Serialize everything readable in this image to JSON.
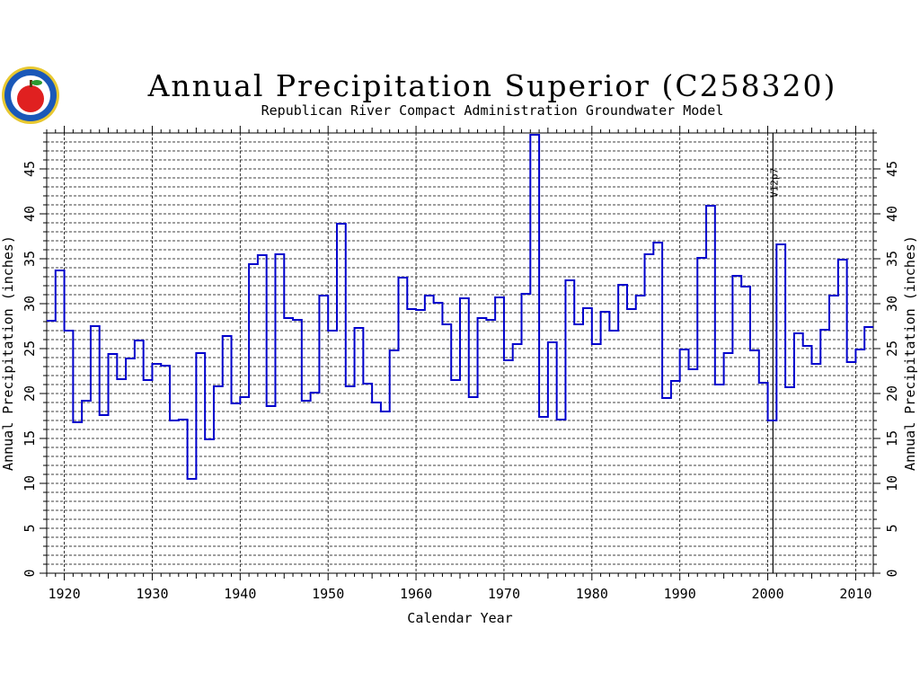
{
  "chart_data": {
    "type": "line",
    "step": true,
    "title": "Annual Precipitation Superior (C258320)",
    "subtitle": "Republican River Compact Administration Groundwater Model",
    "xlabel": "Calendar Year",
    "ylabel": "Annual Precipitation (inches)",
    "ylabel_right": "Annual Precipitation (inches)",
    "xlim": [
      1918,
      2012
    ],
    "ylim": [
      0,
      49
    ],
    "x_ticks": [
      1920,
      1930,
      1940,
      1950,
      1960,
      1970,
      1980,
      1990,
      2000,
      2010
    ],
    "y_ticks": [
      0,
      5,
      10,
      15,
      20,
      25,
      30,
      35,
      40,
      45
    ],
    "grid": true,
    "line_color": "#0000cc",
    "grid_color": "#000000",
    "annotation": {
      "x": 2001,
      "label": "V12p7"
    },
    "x": [
      1918,
      1919,
      1920,
      1921,
      1922,
      1923,
      1924,
      1925,
      1926,
      1927,
      1928,
      1929,
      1930,
      1931,
      1932,
      1933,
      1934,
      1935,
      1936,
      1937,
      1938,
      1939,
      1940,
      1941,
      1942,
      1943,
      1944,
      1945,
      1946,
      1947,
      1948,
      1949,
      1950,
      1951,
      1952,
      1953,
      1954,
      1955,
      1956,
      1957,
      1958,
      1959,
      1960,
      1961,
      1962,
      1963,
      1964,
      1965,
      1966,
      1967,
      1968,
      1969,
      1970,
      1971,
      1972,
      1973,
      1974,
      1975,
      1976,
      1977,
      1978,
      1979,
      1980,
      1981,
      1982,
      1983,
      1984,
      1985,
      1986,
      1987,
      1988,
      1989,
      1990,
      1991,
      1992,
      1993,
      1994,
      1995,
      1996,
      1997,
      1998,
      1999,
      2000,
      2001,
      2002,
      2003,
      2004,
      2005,
      2006,
      2007,
      2008,
      2009,
      2010,
      2011
    ],
    "values": [
      28.1,
      33.7,
      27.0,
      16.8,
      19.2,
      27.5,
      17.6,
      24.4,
      21.6,
      23.9,
      25.9,
      21.5,
      23.3,
      23.1,
      17.0,
      17.1,
      10.5,
      24.5,
      14.9,
      20.8,
      26.4,
      18.9,
      19.6,
      34.4,
      35.4,
      18.6,
      35.5,
      28.4,
      28.2,
      19.2,
      20.1,
      30.9,
      27.0,
      38.9,
      20.8,
      27.3,
      21.1,
      19.0,
      18.0,
      24.8,
      32.9,
      29.4,
      29.3,
      30.9,
      30.1,
      27.7,
      21.5,
      30.6,
      19.6,
      28.4,
      28.2,
      30.7,
      23.7,
      25.5,
      31.1,
      48.8,
      17.4,
      25.7,
      17.1,
      32.6,
      27.7,
      29.5,
      25.5,
      29.1,
      27.0,
      32.1,
      29.4,
      30.9,
      35.5,
      36.8,
      19.5,
      21.4,
      24.9,
      22.7,
      35.1,
      40.9,
      21.0,
      24.5,
      33.1,
      31.9,
      24.8,
      21.2,
      17.0,
      36.6,
      20.7,
      26.7,
      25.3,
      23.3,
      27.1,
      30.9,
      34.9,
      23.5,
      24.9,
      27.4
    ]
  },
  "logo": {
    "name": "apple-logo-icon",
    "ring_color": "#1a58b8",
    "apple_color": "#e02020"
  }
}
